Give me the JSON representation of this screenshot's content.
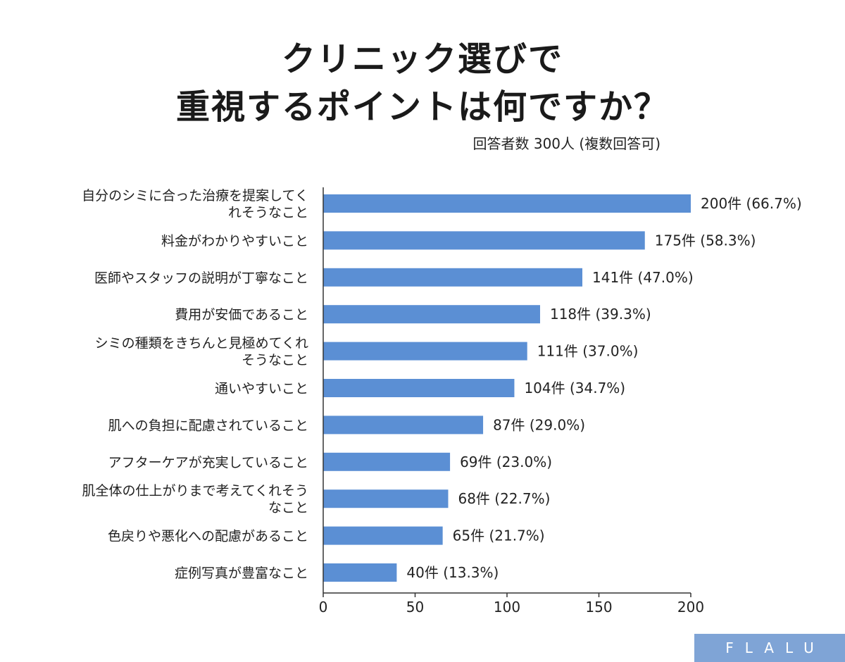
{
  "header": {
    "title_line1": "クリニック選びで",
    "title_line2": "重視するポイントは何ですか？",
    "respondents": "回答者数 300人 (複数回答可)"
  },
  "brand": {
    "logo_text": "FLALU",
    "bg_color": "#7fa4d6"
  },
  "chart_data": {
    "type": "bar",
    "orientation": "horizontal",
    "bar_color": "#5b8fd4",
    "title": "クリニック選びで重視するポイントは何ですか？",
    "subtitle": "回答者数 300人 (複数回答可)",
    "categories": [
      [
        "自分のシミに合った治療を提案してく",
        "れそうなこと"
      ],
      [
        "料金がわかりやすいこと"
      ],
      [
        "医師やスタッフの説明が丁寧なこと"
      ],
      [
        "費用が安価であること"
      ],
      [
        "シミの種類をきちんと見極めてくれ",
        "そうなこと"
      ],
      [
        "通いやすいこと"
      ],
      [
        "肌への負担に配慮されていること"
      ],
      [
        "アフターケアが充実していること"
      ],
      [
        "肌全体の仕上がりまで考えてくれそう",
        "なこと"
      ],
      [
        "色戻りや悪化への配慮があること"
      ],
      [
        "症例写真が豊富なこと"
      ]
    ],
    "values": [
      200,
      175,
      141,
      118,
      111,
      104,
      87,
      69,
      68,
      65,
      40
    ],
    "data_labels": [
      "200件 (66.7%)",
      "175件 (58.3%)",
      "141件 (47.0%)",
      "118件 (39.3%)",
      "111件 (37.0%)",
      "104件 (34.7%)",
      "87件 (29.0%)",
      "69件 (23.0%)",
      "68件 (22.7%)",
      "65件 (21.7%)",
      "40件 (13.3%)"
    ],
    "xlim": [
      0,
      200
    ],
    "xticks": [
      0,
      50,
      100,
      150,
      200
    ],
    "grid": false,
    "legend": "none"
  }
}
